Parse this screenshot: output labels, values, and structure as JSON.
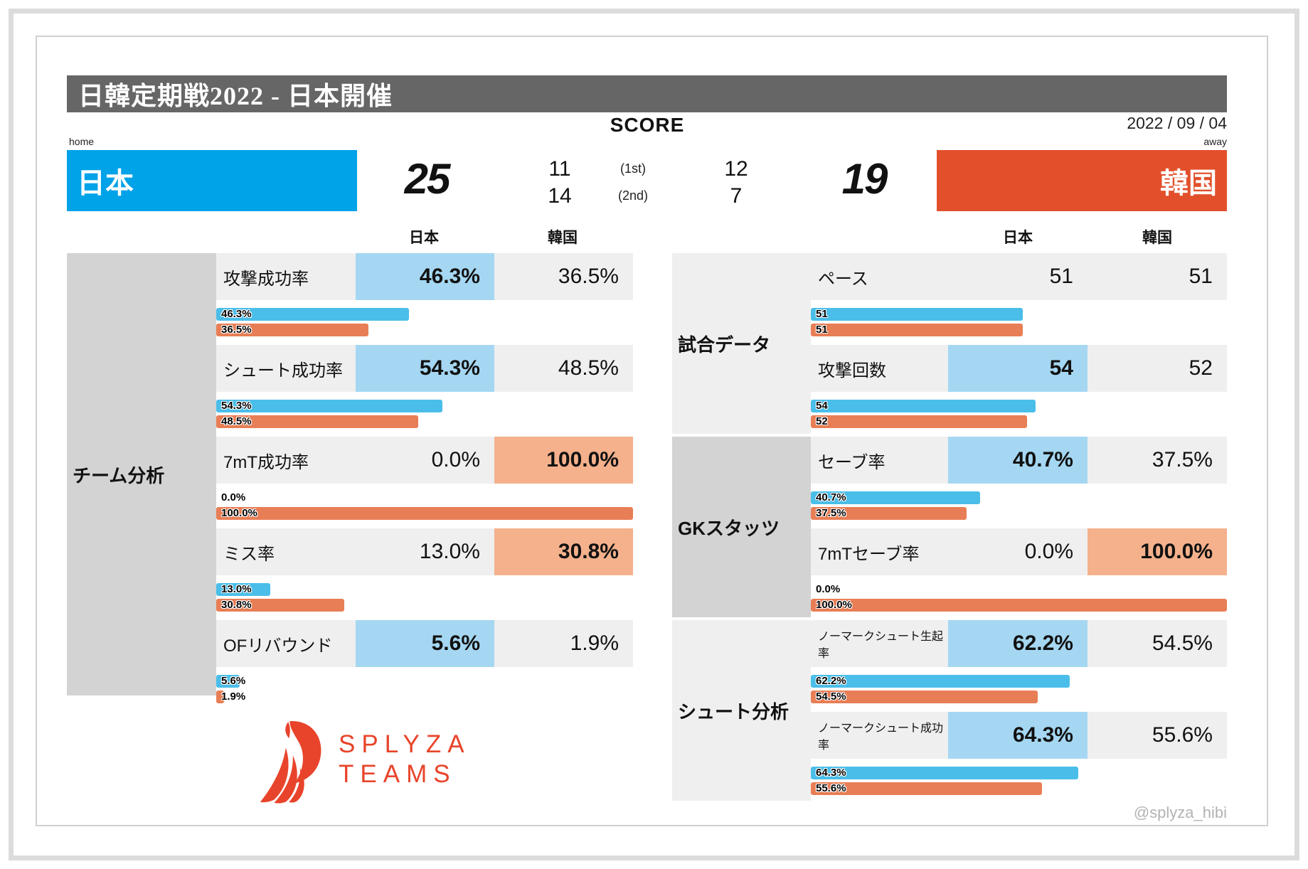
{
  "header": {
    "title": "日韓定期戦2022 - 日本開催",
    "date": "2022 / 09 / 04",
    "score_label": "SCORE",
    "home_tag": "home",
    "away_tag": "away"
  },
  "teams": {
    "home": {
      "name": "日本",
      "score": "25",
      "halves": [
        "11",
        "14"
      ]
    },
    "away": {
      "name": "韓国",
      "score": "19",
      "halves": [
        "12",
        "7"
      ]
    }
  },
  "half_labels": [
    "(1st)",
    "(2nd)"
  ],
  "column_headers": {
    "japan": "日本",
    "korea": "韓国"
  },
  "left_table": {
    "section_label": "チーム分析",
    "rows": [
      {
        "label": "攻撃成功率",
        "jp": "46.3%",
        "kr": "36.5%",
        "jpv": 46.3,
        "krv": 36.5,
        "hl": "jp"
      },
      {
        "label": "シュート成功率",
        "jp": "54.3%",
        "kr": "48.5%",
        "jpv": 54.3,
        "krv": 48.5,
        "hl": "jp"
      },
      {
        "label": "7mT成功率",
        "jp": "0.0%",
        "kr": "100.0%",
        "jpv": 0,
        "krv": 100,
        "hl": "kr"
      },
      {
        "label": "ミス率",
        "jp": "13.0%",
        "kr": "30.8%",
        "jpv": 13.0,
        "krv": 30.8,
        "hl": "kr"
      },
      {
        "label": "OFリバウンド",
        "jp": "5.6%",
        "kr": "1.9%",
        "jpv": 5.6,
        "krv": 1.9,
        "hl": "jp"
      }
    ]
  },
  "right_table": {
    "sections": [
      {
        "label": "試合データ",
        "shade": "light",
        "rows": [
          {
            "label": "ペース",
            "jp": "51",
            "kr": "51",
            "jpv": 51,
            "krv": 51,
            "hl": null
          },
          {
            "label": "攻撃回数",
            "jp": "54",
            "kr": "52",
            "jpv": 54,
            "krv": 52,
            "hl": "jp"
          }
        ]
      },
      {
        "label": "GKスタッツ",
        "shade": "dark",
        "rows": [
          {
            "label": "セーブ率",
            "jp": "40.7%",
            "kr": "37.5%",
            "jpv": 40.7,
            "krv": 37.5,
            "hl": "jp"
          },
          {
            "label": "7mTセーブ率",
            "jp": "0.0%",
            "kr": "100.0%",
            "jpv": 0,
            "krv": 100,
            "hl": "kr"
          }
        ]
      },
      {
        "label": "シュート分析",
        "shade": "light",
        "rows": [
          {
            "label": "ノーマークシュート生起率",
            "jp": "62.2%",
            "kr": "54.5%",
            "jpv": 62.2,
            "krv": 54.5,
            "hl": "jp",
            "small": true
          },
          {
            "label": "ノーマークシュート成功率",
            "jp": "64.3%",
            "kr": "55.6%",
            "jpv": 64.3,
            "krv": 55.6,
            "hl": "jp",
            "small": true
          }
        ]
      }
    ]
  },
  "logo": {
    "line1": "SPLYZA",
    "line2": "TEAMS"
  },
  "footer": {
    "handle": "@splyza_hibi"
  },
  "colors": {
    "title_bg": "#666666",
    "japan_blue": "#00A2E8",
    "japan_light": "#A5D7F2",
    "japan_bar": "#4ABEE8",
    "korea_red": "#E2502B",
    "korea_light": "#F4B18C",
    "korea_bar": "#E87E55",
    "row_bg": "#EFEFEF",
    "sidebar_dark": "#D3D3D3",
    "logo_red": "#E8442B"
  },
  "chart_data": [
    {
      "type": "bar",
      "title": "チーム分析",
      "categories": [
        "攻撃成功率",
        "シュート成功率",
        "7mT成功率",
        "ミス率",
        "OFリバウンド"
      ],
      "series": [
        {
          "name": "日本",
          "values": [
            46.3,
            54.3,
            0.0,
            13.0,
            5.6
          ]
        },
        {
          "name": "韓国",
          "values": [
            36.5,
            48.5,
            100.0,
            30.8,
            1.9
          ]
        }
      ],
      "xlabel": "",
      "ylabel": "%",
      "ylim": [
        0,
        100
      ],
      "legend_position": "top"
    },
    {
      "type": "bar",
      "title": "試合データ / GKスタッツ / シュート分析",
      "categories": [
        "ペース",
        "攻撃回数",
        "セーブ率",
        "7mTセーブ率",
        "ノーマークシュート生起率",
        "ノーマークシュート成功率"
      ],
      "series": [
        {
          "name": "日本",
          "values": [
            51,
            54,
            40.7,
            0.0,
            62.2,
            64.3
          ]
        },
        {
          "name": "韓国",
          "values": [
            51,
            52,
            37.5,
            100.0,
            54.5,
            55.6
          ]
        }
      ],
      "xlabel": "",
      "ylabel": "",
      "ylim": [
        0,
        100
      ],
      "legend_position": "top"
    }
  ]
}
